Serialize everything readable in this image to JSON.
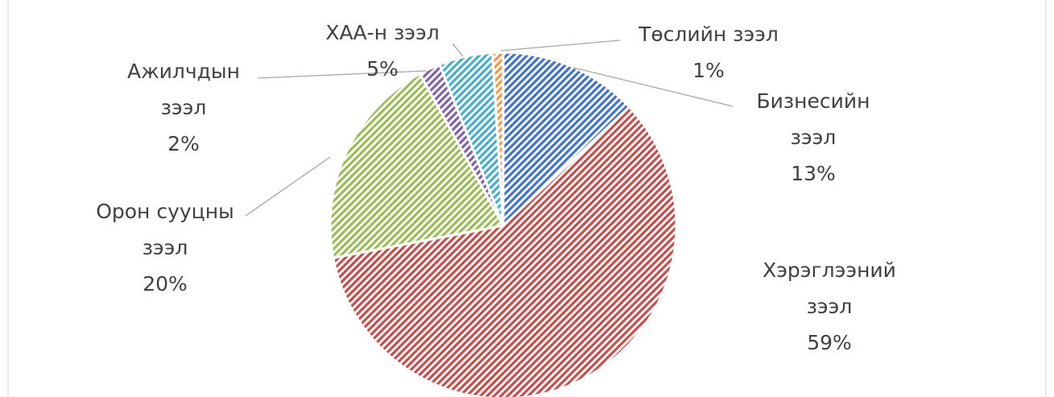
{
  "chart_data": {
    "type": "pie",
    "categories": [
      "Бизнесийн зээл",
      "Хэрэглээний зээл",
      "Орон сууцны зээл",
      "Ажилчдын зээл",
      "ХАА-н зээл",
      "Төслийн зээл"
    ],
    "values": [
      13,
      59,
      20,
      2,
      5,
      1
    ],
    "value_labels": [
      "13%",
      "59%",
      "20%",
      "2%",
      "5%",
      "1%"
    ],
    "colors": [
      "#4472c4",
      "#c0504d",
      "#9bbb59",
      "#8064a2",
      "#4bacc6",
      "#f79646"
    ]
  }
}
